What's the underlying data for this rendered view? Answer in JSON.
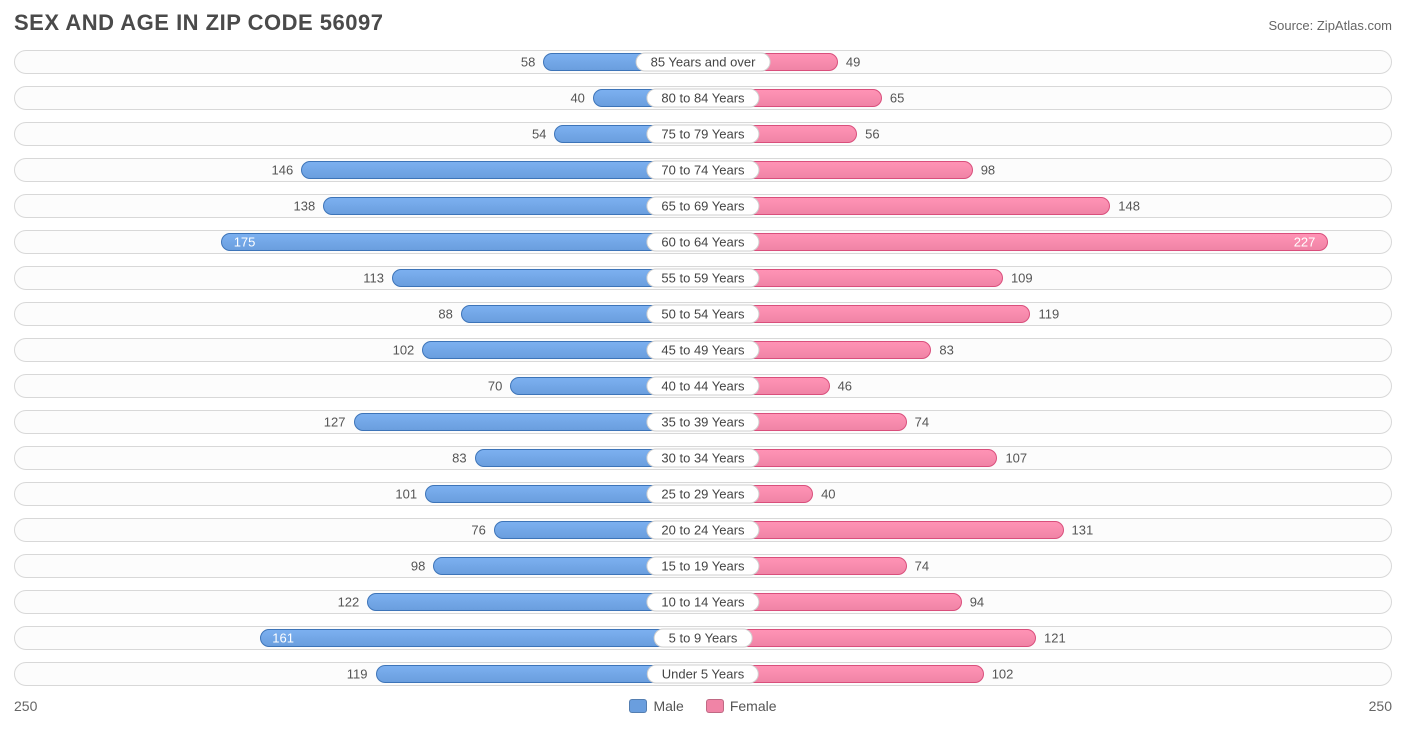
{
  "title": "SEX AND AGE IN ZIP CODE 56097",
  "source": "Source: ZipAtlas.com",
  "chart": {
    "type": "population-pyramid",
    "axis_max": 250,
    "axis_left_label": "250",
    "axis_right_label": "250",
    "background_color": "#ffffff",
    "track_border_color": "#d8d8d8",
    "male_color": "#6a9ede",
    "male_border": "#3d74b8",
    "female_color": "#f084a6",
    "female_border": "#d94f7c",
    "label_fontsize": 13,
    "title_fontsize": 22,
    "title_color": "#4a4a4a",
    "rows": [
      {
        "label": "85 Years and over",
        "male": 58,
        "female": 49
      },
      {
        "label": "80 to 84 Years",
        "male": 40,
        "female": 65
      },
      {
        "label": "75 to 79 Years",
        "male": 54,
        "female": 56
      },
      {
        "label": "70 to 74 Years",
        "male": 146,
        "female": 98
      },
      {
        "label": "65 to 69 Years",
        "male": 138,
        "female": 148
      },
      {
        "label": "60 to 64 Years",
        "male": 175,
        "female": 227
      },
      {
        "label": "55 to 59 Years",
        "male": 113,
        "female": 109
      },
      {
        "label": "50 to 54 Years",
        "male": 88,
        "female": 119
      },
      {
        "label": "45 to 49 Years",
        "male": 102,
        "female": 83
      },
      {
        "label": "40 to 44 Years",
        "male": 70,
        "female": 46
      },
      {
        "label": "35 to 39 Years",
        "male": 127,
        "female": 74
      },
      {
        "label": "30 to 34 Years",
        "male": 83,
        "female": 107
      },
      {
        "label": "25 to 29 Years",
        "male": 101,
        "female": 40
      },
      {
        "label": "20 to 24 Years",
        "male": 76,
        "female": 131
      },
      {
        "label": "15 to 19 Years",
        "male": 98,
        "female": 74
      },
      {
        "label": "10 to 14 Years",
        "male": 122,
        "female": 94
      },
      {
        "label": "5 to 9 Years",
        "male": 161,
        "female": 121
      },
      {
        "label": "Under 5 Years",
        "male": 119,
        "female": 102
      }
    ],
    "legend": {
      "male_label": "Male",
      "female_label": "Female"
    }
  }
}
